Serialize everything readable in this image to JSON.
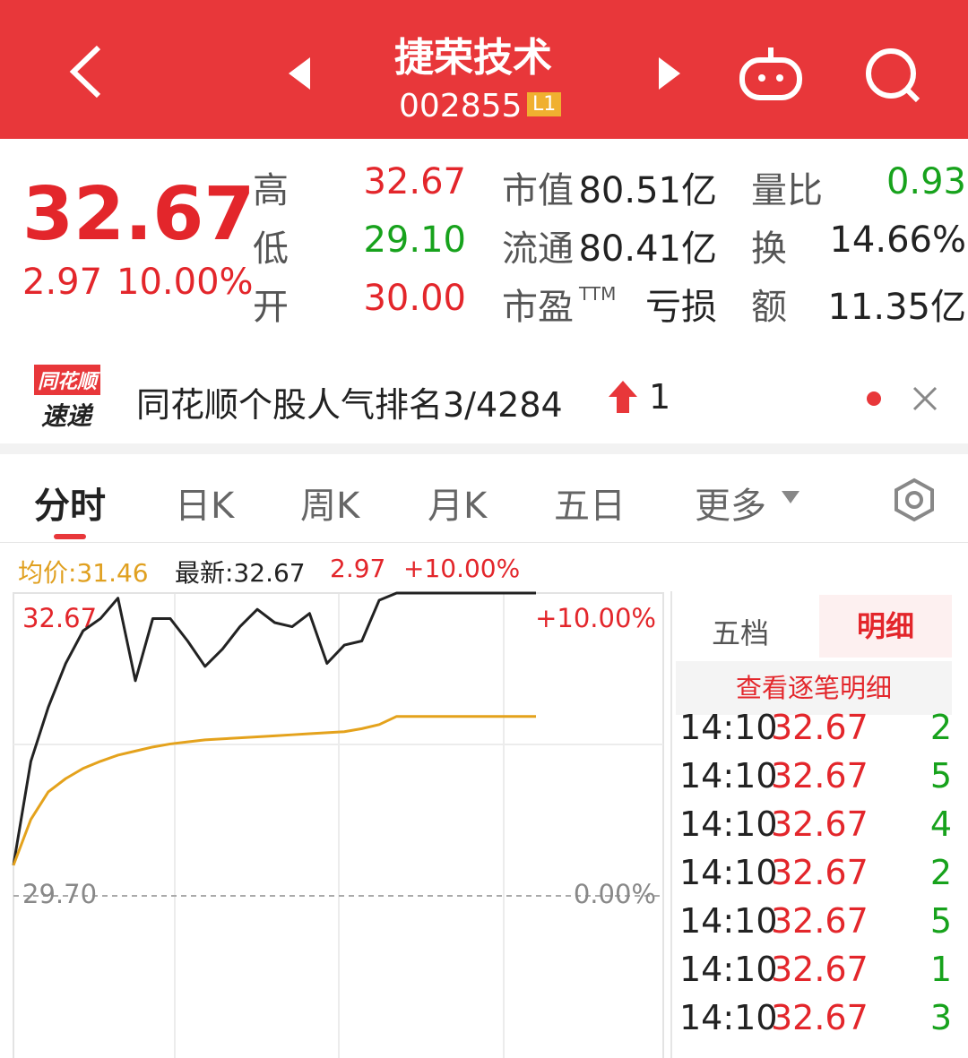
{
  "header": {
    "title": "捷荣技术",
    "code": "002855",
    "badge": "L1"
  },
  "quote": {
    "price": "32.67",
    "change": "2.97",
    "change_pct": "10.00%",
    "stats": [
      {
        "label": "高",
        "value": "32.67"
      },
      {
        "label": "低",
        "value": "29.10"
      },
      {
        "label": "开",
        "value": "30.00"
      },
      {
        "label": "市值",
        "value": "80.51亿"
      },
      {
        "label": "流通",
        "value": "80.41亿"
      },
      {
        "label": "市盈",
        "label_sup": "TTM",
        "value": "亏损"
      },
      {
        "label": "量比",
        "value": "0.93"
      },
      {
        "label": "换",
        "value": "14.66%"
      },
      {
        "label": "额",
        "value": "11.35亿"
      }
    ]
  },
  "banner": {
    "logo_top": "同花顺",
    "logo_bottom": "速递",
    "text": "同花顺个股人气排名3/4284",
    "rank_change": "1"
  },
  "tabs": [
    "分时",
    "日K",
    "周K",
    "月K",
    "五日",
    "更多"
  ],
  "info": {
    "avg": "均价:31.46",
    "latest": "最新:32.67",
    "change": "2.97",
    "change_pct": "+10.00%"
  },
  "chart_data": {
    "type": "line",
    "series": [
      {
        "color": "#222222",
        "values": [
          30.0,
          31.02,
          31.55,
          31.98,
          32.3,
          32.42,
          32.62,
          31.81,
          32.42,
          32.42,
          32.2,
          31.95,
          32.12,
          32.34,
          32.51,
          32.38,
          32.34,
          32.47,
          31.98,
          32.16,
          32.2,
          32.6,
          32.67,
          32.67,
          32.67,
          32.67,
          32.67,
          32.67,
          32.67,
          32.67,
          32.67
        ]
      },
      {
        "color": "#e4a21c",
        "values": [
          30.0,
          30.45,
          30.72,
          30.85,
          30.95,
          31.02,
          31.08,
          31.12,
          31.16,
          31.19,
          31.21,
          31.23,
          31.24,
          31.25,
          31.26,
          31.27,
          31.28,
          31.29,
          31.3,
          31.31,
          31.34,
          31.38,
          31.46,
          31.46,
          31.46,
          31.46,
          31.46,
          31.46,
          31.46,
          31.46,
          31.46
        ]
      }
    ],
    "ylim": [
      26.73,
      32.67
    ],
    "yticks": [
      32.67,
      {
        "value": 29.7,
        "label": "29.70"
      }
    ],
    "y2lim": [
      -10,
      10
    ],
    "y2ticks": [
      {
        "value": 10,
        "label": "+10.00%"
      },
      {
        "value": 0,
        "label": "0.00%"
      }
    ]
  },
  "side": {
    "tabs": [
      "五档",
      "明细"
    ],
    "link": "查看逐笔明细",
    "rows": [
      [
        "14:10",
        "32.67",
        "2"
      ],
      [
        "14:10",
        "32.67",
        "5"
      ],
      [
        "14:10",
        "32.67",
        "4"
      ],
      [
        "14:10",
        "32.67",
        "2"
      ],
      [
        "14:10",
        "32.67",
        "5"
      ],
      [
        "14:10",
        "32.67",
        "1"
      ],
      [
        "14:10",
        "32.67",
        "3"
      ]
    ]
  }
}
